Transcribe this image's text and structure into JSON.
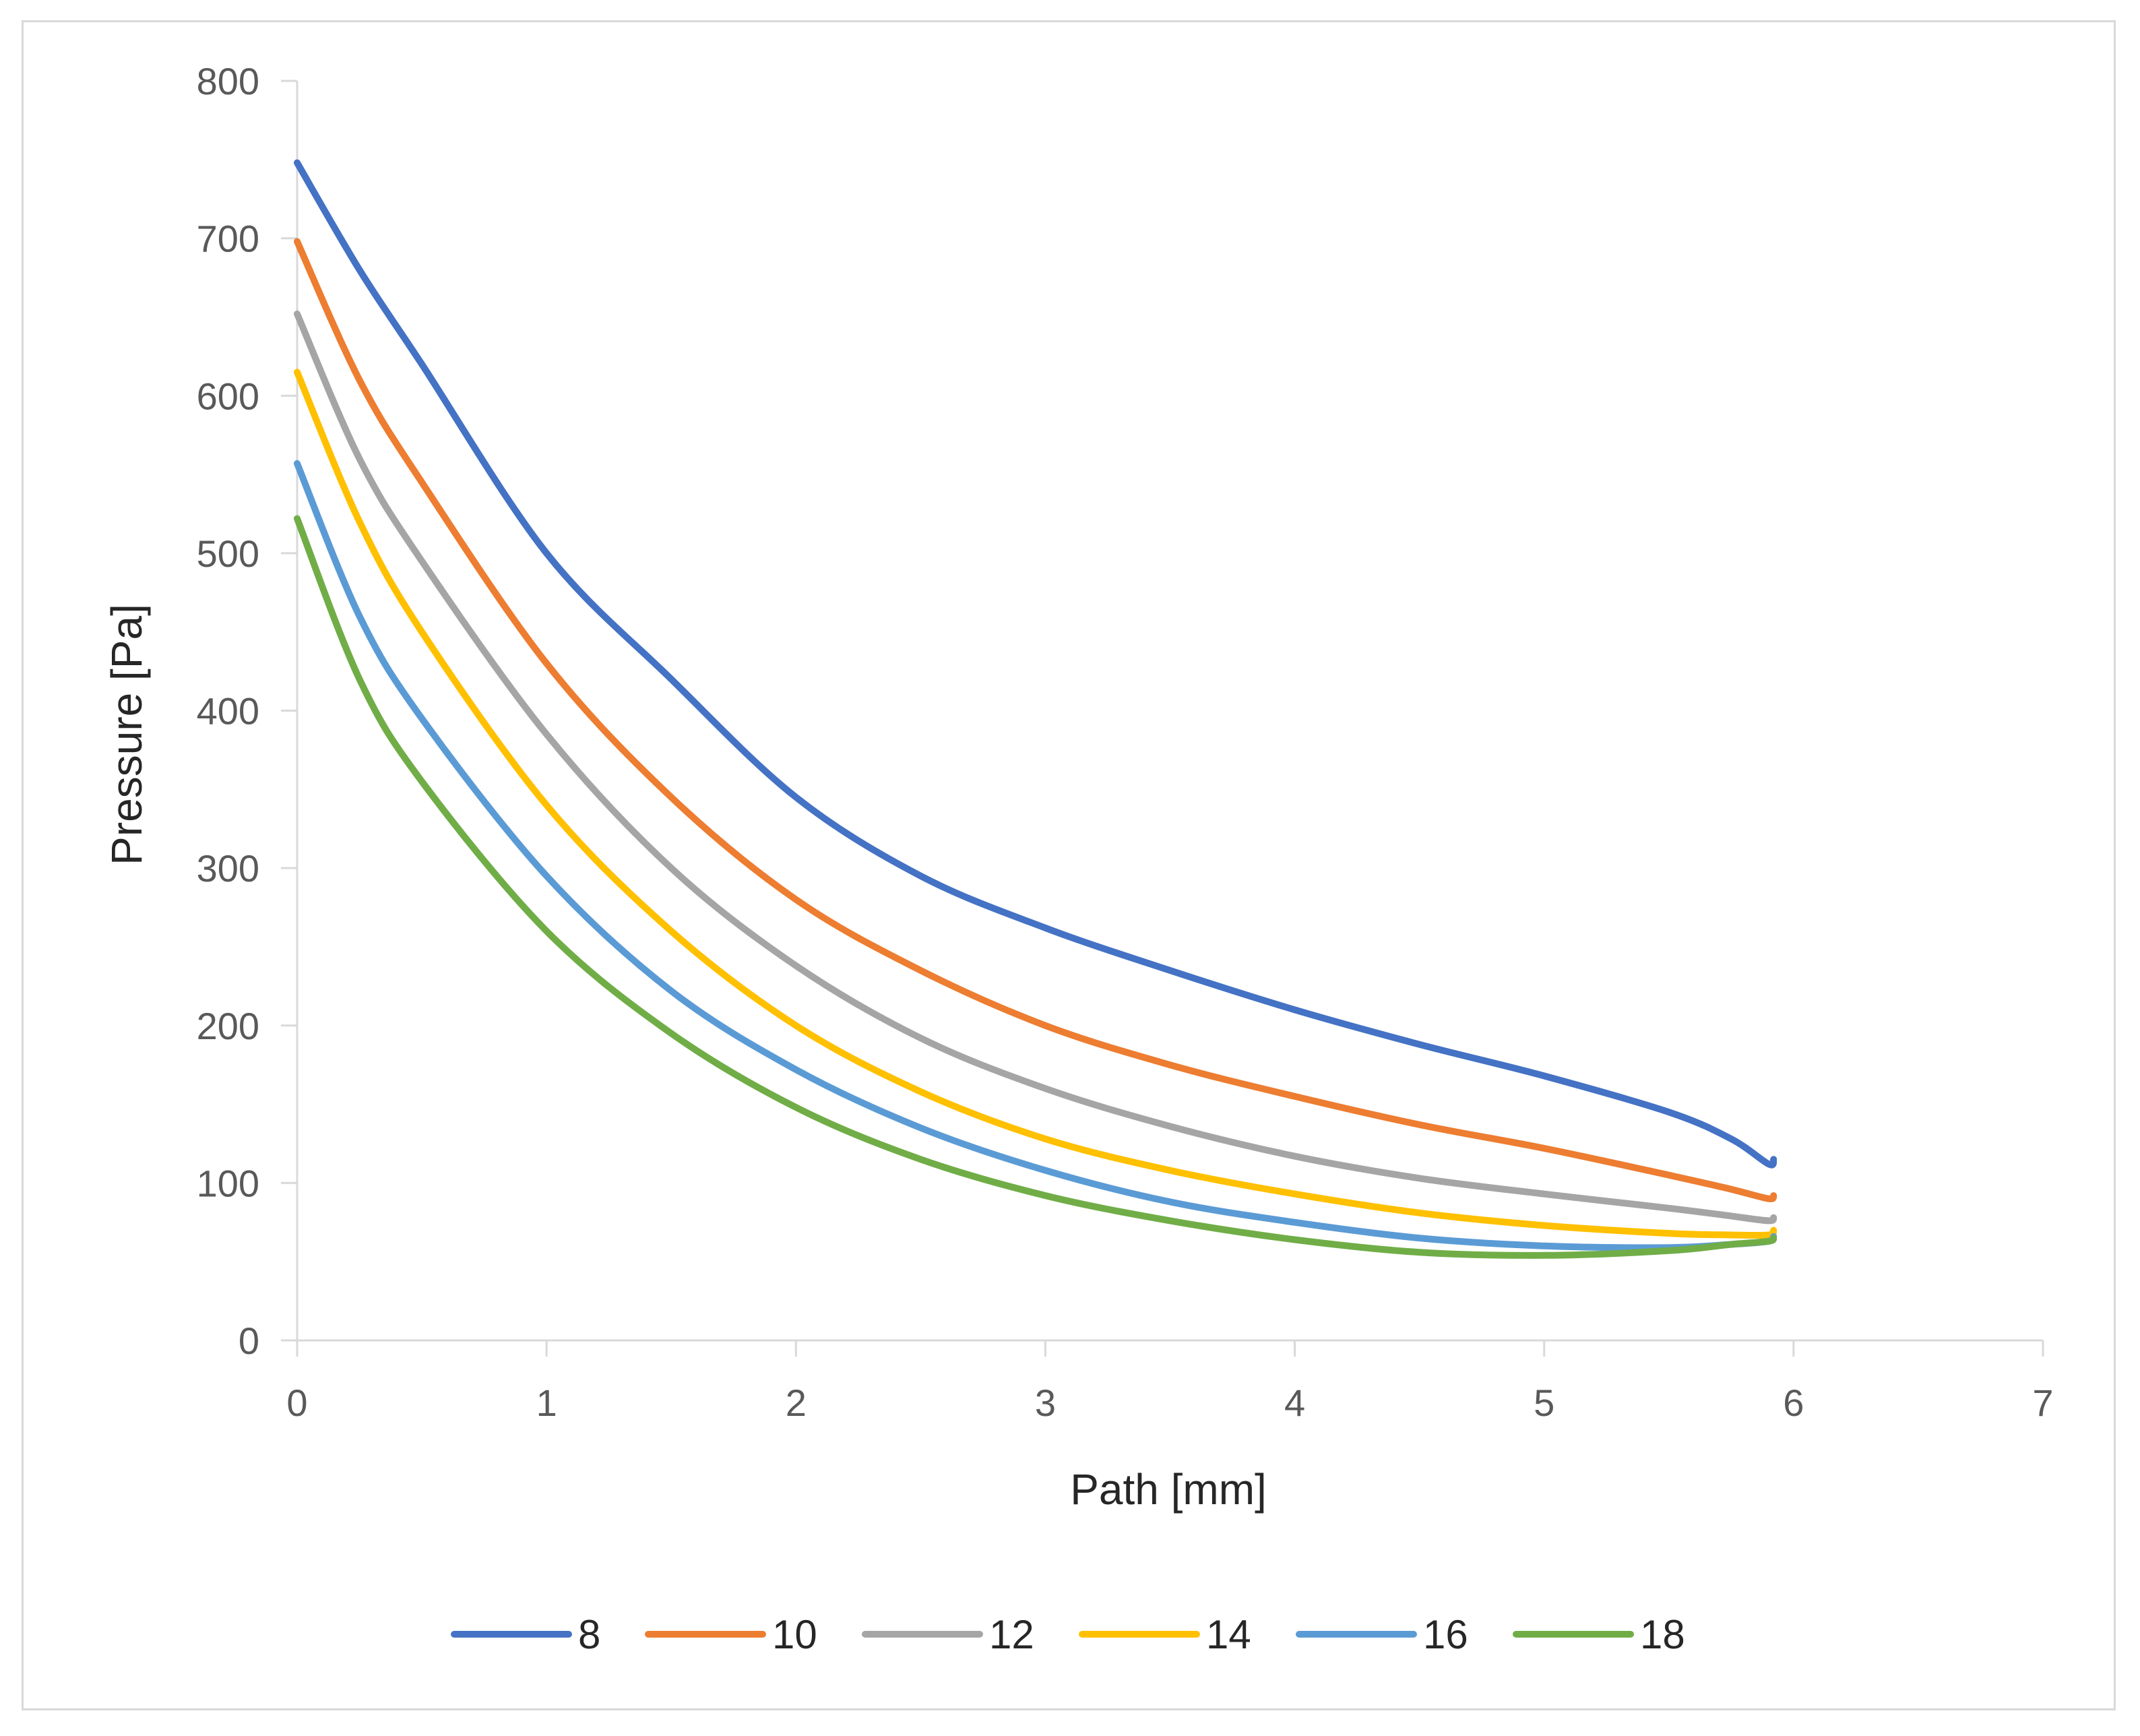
{
  "chart_data": {
    "type": "line",
    "title": "",
    "xlabel": "Path [mm]",
    "ylabel": "Pressure [Pa]",
    "xlim": [
      0,
      7
    ],
    "ylim": [
      0,
      800
    ],
    "xticks": [
      0,
      1,
      2,
      3,
      4,
      5,
      6,
      7
    ],
    "yticks": [
      0,
      100,
      200,
      300,
      400,
      500,
      600,
      700,
      800
    ],
    "grid": false,
    "legend_position": "bottom",
    "x": [
      0,
      0.25,
      0.5,
      1,
      1.5,
      2,
      2.5,
      3,
      3.5,
      4,
      4.5,
      5,
      5.5,
      5.75,
      5.9,
      5.92
    ],
    "series": [
      {
        "name": "8",
        "color": "#4472C4",
        "values": [
          748,
          680,
          620,
          500,
          420,
          345,
          295,
          262,
          235,
          210,
          188,
          168,
          145,
          128,
          112,
          115
        ]
      },
      {
        "name": "10",
        "color": "#ED7D31",
        "values": [
          698,
          610,
          545,
          430,
          345,
          280,
          235,
          200,
          175,
          155,
          137,
          122,
          105,
          96,
          90,
          92
        ]
      },
      {
        "name": "12",
        "color": "#A5A5A5",
        "values": [
          652,
          560,
          495,
          385,
          300,
          238,
          192,
          160,
          136,
          117,
          103,
          93,
          84,
          79,
          76,
          78
        ]
      },
      {
        "name": "14",
        "color": "#FFC000",
        "values": [
          615,
          520,
          450,
          340,
          260,
          200,
          158,
          128,
          108,
          93,
          81,
          73,
          68,
          67,
          67,
          70
        ]
      },
      {
        "name": "16",
        "color": "#5B9BD5",
        "values": [
          557,
          460,
          395,
          295,
          222,
          172,
          135,
          108,
          88,
          75,
          65,
          60,
          59,
          61,
          63,
          66
        ]
      },
      {
        "name": "18",
        "color": "#70AD47",
        "values": [
          522,
          420,
          355,
          260,
          195,
          148,
          115,
          92,
          76,
          64,
          56,
          54,
          57,
          61,
          63,
          65
        ]
      }
    ]
  }
}
